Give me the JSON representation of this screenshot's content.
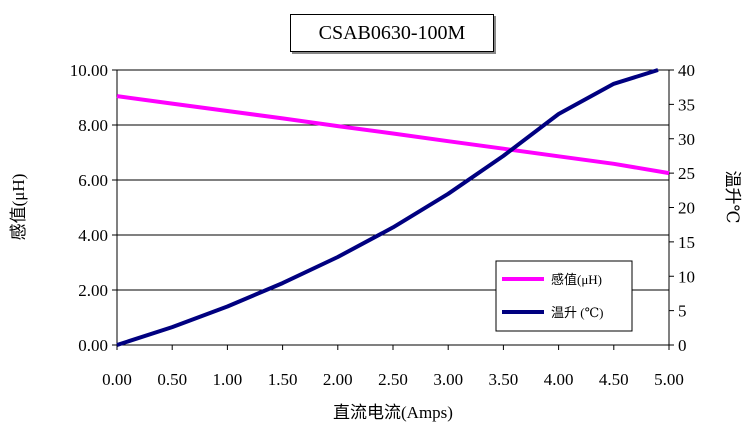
{
  "chart_data": {
    "type": "line",
    "title": "CSAB0630-100M",
    "xlabel": "直流电流(Amps)",
    "ylabel_left": "感值(μH)",
    "ylabel_right": "温升℃",
    "x_ticks": [
      "0.00",
      "0.50",
      "1.00",
      "1.50",
      "2.00",
      "2.50",
      "3.00",
      "3.50",
      "4.00",
      "4.50",
      "5.00"
    ],
    "y_left_ticks": [
      "0.00",
      "2.00",
      "4.00",
      "6.00",
      "8.00",
      "10.00"
    ],
    "y_right_ticks": [
      "0",
      "5",
      "10",
      "15",
      "20",
      "25",
      "30",
      "35",
      "40"
    ],
    "xlim": [
      0,
      5
    ],
    "ylim_left": [
      0,
      10
    ],
    "ylim_right": [
      0,
      40
    ],
    "grid": "horizontal",
    "legend_position": "bottom-right",
    "series": [
      {
        "name": "感值(μH)",
        "axis": "left",
        "color": "#ff00ff",
        "x": [
          0,
          0.5,
          1.0,
          1.5,
          2.0,
          2.5,
          3.0,
          3.5,
          4.0,
          4.5,
          5.0
        ],
        "values": [
          9.05,
          8.78,
          8.51,
          8.24,
          7.96,
          7.69,
          7.41,
          7.14,
          6.86,
          6.59,
          6.25
        ]
      },
      {
        "name": "温升 (℃)",
        "axis": "right",
        "color": "#000080",
        "x": [
          0,
          0.5,
          1.0,
          1.5,
          2.0,
          2.5,
          3.0,
          3.5,
          4.0,
          4.5,
          4.9
        ],
        "values": [
          0,
          2.6,
          5.6,
          9.0,
          12.8,
          17.1,
          22.0,
          27.5,
          33.6,
          38.0,
          40
        ]
      }
    ]
  }
}
